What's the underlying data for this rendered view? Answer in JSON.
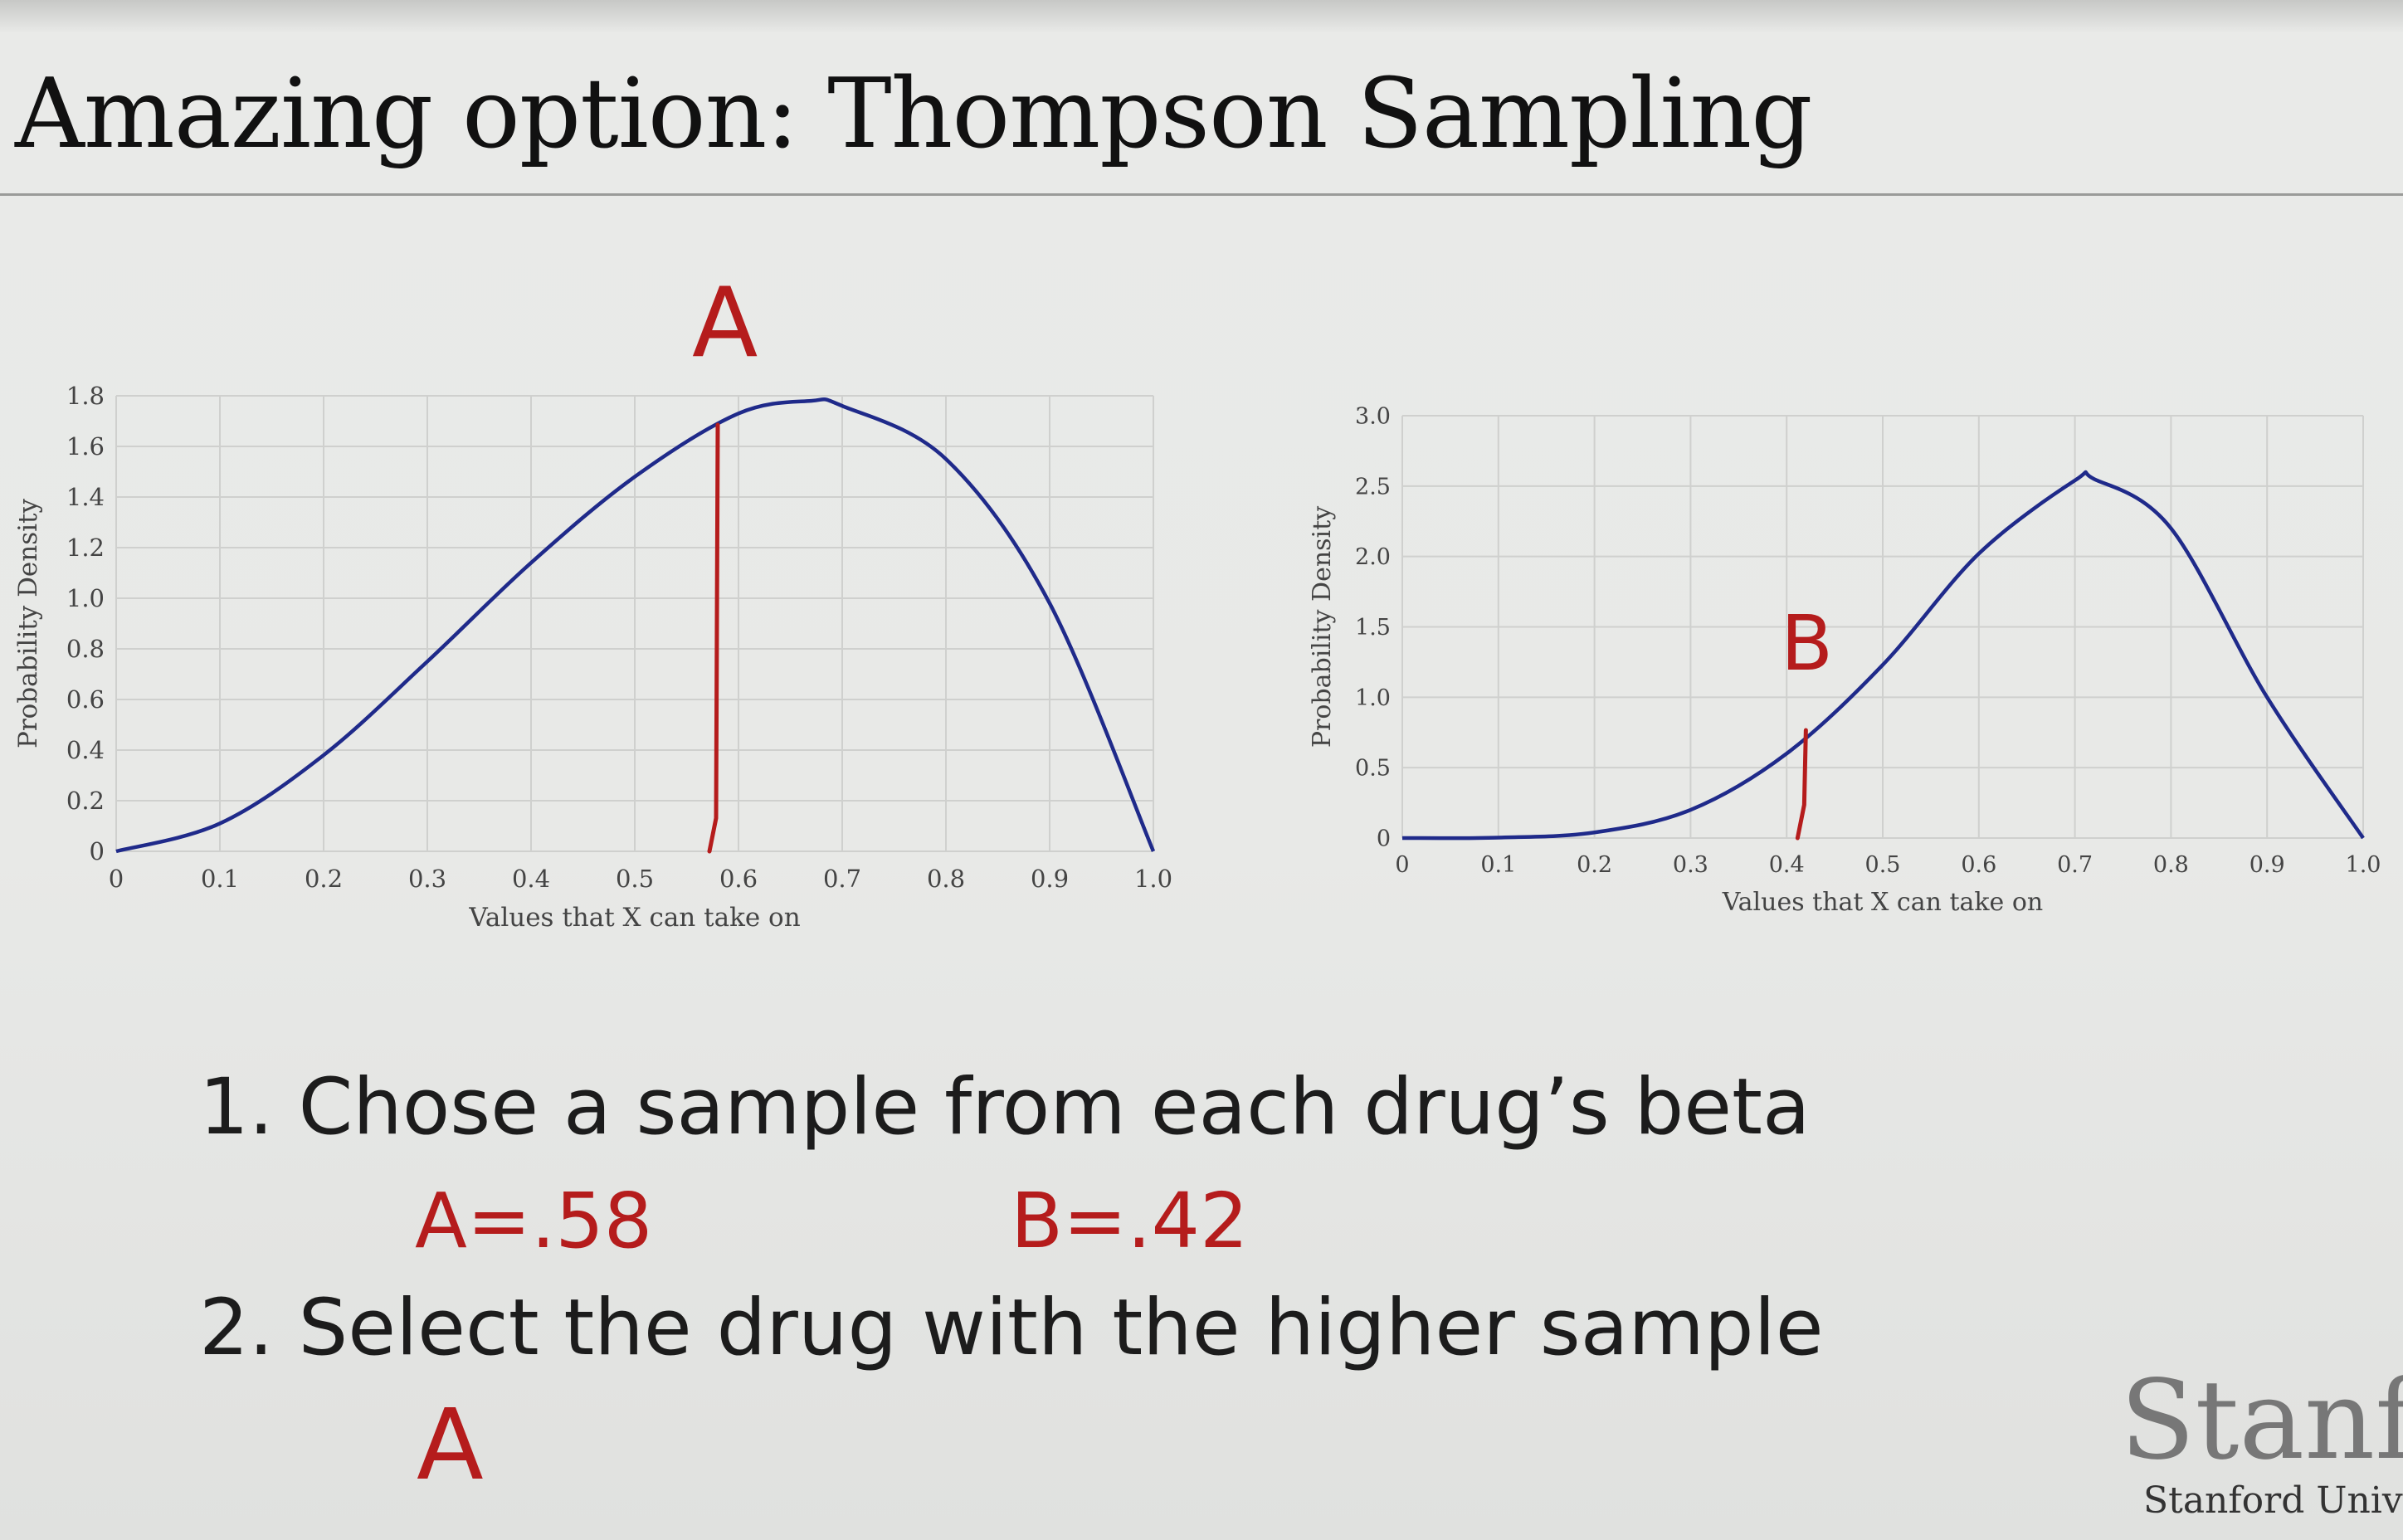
{
  "slide": {
    "title": "Amazing option: Thompson Sampling",
    "steps": [
      "1. Chose a sample from each drug’s beta",
      "2. Select the drug with the higher sample"
    ],
    "logo_wordmark": "Stanfo",
    "logo_subtitle": "Stanford Unive"
  },
  "annotations": {
    "chart_a_marker": "A",
    "chart_b_marker": "B",
    "sample_a": "A=.58",
    "sample_b": "B=.42",
    "choice": "A",
    "ink_color": "#b51c1c"
  },
  "chart_data": [
    {
      "type": "line",
      "xlabel": "Values that X can take on",
      "ylabel": "Probability Density",
      "xlim": [
        0,
        1.0
      ],
      "ylim": [
        0,
        1.8
      ],
      "x_ticks": [
        "0",
        "0.1",
        "0.2",
        "0.3",
        "0.4",
        "0.5",
        "0.6",
        "0.7",
        "0.8",
        "0.9",
        "1.0"
      ],
      "y_ticks": [
        "0",
        "0.2",
        "0.4",
        "0.6",
        "0.8",
        "1.0",
        "1.2",
        "1.4",
        "1.6",
        "1.8"
      ],
      "grid": true,
      "line_color": "#1f2a8a",
      "x": [
        0,
        0.1,
        0.2,
        0.3,
        0.4,
        0.5,
        0.6,
        0.67,
        0.7,
        0.8,
        0.9,
        1.0
      ],
      "y": [
        0,
        0.11,
        0.38,
        0.75,
        1.14,
        1.48,
        1.73,
        1.78,
        1.76,
        1.55,
        0.98,
        0
      ],
      "marker_x": 0.58
    },
    {
      "type": "line",
      "xlabel": "Values that X can take on",
      "ylabel": "Probability Density",
      "xlim": [
        0,
        1.0
      ],
      "ylim": [
        0,
        3.0
      ],
      "x_ticks": [
        "0",
        "0.1",
        "0.2",
        "0.3",
        "0.4",
        "0.5",
        "0.6",
        "0.7",
        "0.8",
        "0.9",
        "1.0"
      ],
      "y_ticks": [
        "0",
        "0.5",
        "1.0",
        "1.5",
        "2.0",
        "2.5",
        "3.0"
      ],
      "grid": true,
      "line_color": "#1f2a8a",
      "x": [
        0,
        0.1,
        0.2,
        0.3,
        0.4,
        0.5,
        0.6,
        0.7,
        0.72,
        0.8,
        0.9,
        1.0
      ],
      "y": [
        0,
        0.003,
        0.04,
        0.2,
        0.6,
        1.23,
        2.02,
        2.54,
        2.55,
        2.2,
        1.0,
        0
      ],
      "marker_x": 0.42
    }
  ]
}
